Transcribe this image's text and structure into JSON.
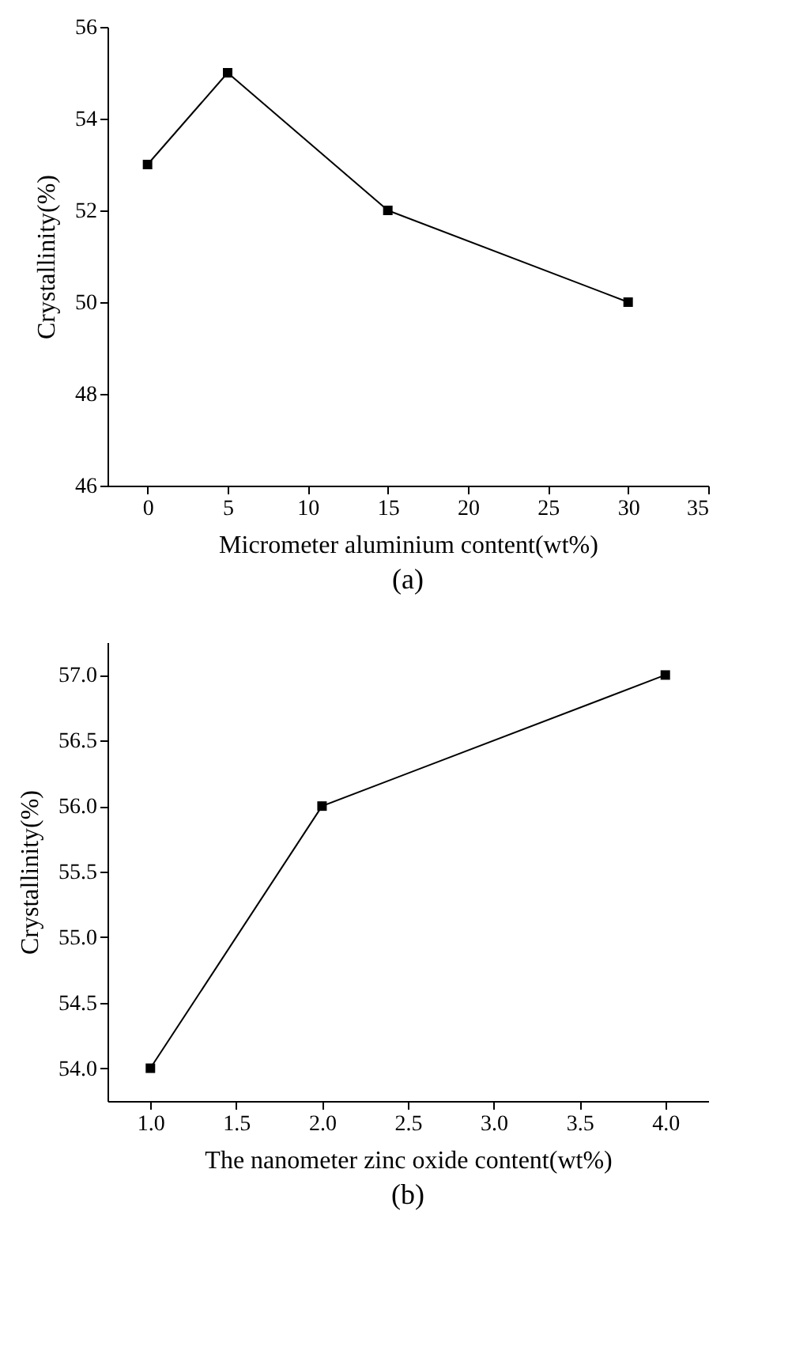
{
  "chart_data": [
    {
      "type": "line",
      "title": "(a)",
      "xlabel": "Micrometer aluminium content(wt%)",
      "ylabel": "Crystallinity(%)",
      "x": [
        0,
        5,
        15,
        30
      ],
      "series": [
        {
          "color": "#000000",
          "values": [
            53,
            55,
            52,
            50
          ]
        }
      ],
      "xlim": [
        -2.5,
        35
      ],
      "xticks": [
        0,
        5,
        10,
        15,
        20,
        25,
        30,
        35
      ],
      "ylim": [
        46,
        56
      ],
      "yticks": [
        46,
        48,
        50,
        52,
        54,
        56
      ],
      "grid": false,
      "marker": "square",
      "line_style": "solid"
    },
    {
      "type": "line",
      "title": "(b)",
      "xlabel": "The nanometer zinc oxide content(wt%)",
      "ylabel": "Crystallinity(%)",
      "x": [
        1,
        2,
        4
      ],
      "series": [
        {
          "color": "#000000",
          "values": [
            54,
            56,
            57
          ]
        }
      ],
      "xlim": [
        0.75,
        4.25
      ],
      "xticks": [
        {
          "value": 1,
          "label": "1.0"
        },
        1.5,
        {
          "value": 2,
          "label": "2.0"
        },
        2.5,
        {
          "value": 3,
          "label": "3.0"
        },
        3.5,
        {
          "value": 4,
          "label": "4.0"
        }
      ],
      "ylim": [
        53.75,
        57.25
      ],
      "yticks": [
        {
          "value": 54,
          "label": "54.0"
        },
        54.5,
        {
          "value": 55,
          "label": "55.0"
        },
        55.5,
        {
          "value": 56,
          "label": "56.0"
        },
        56.5,
        {
          "value": 57,
          "label": "57.0"
        }
      ],
      "grid": false,
      "marker": "square",
      "line_style": "solid"
    }
  ]
}
